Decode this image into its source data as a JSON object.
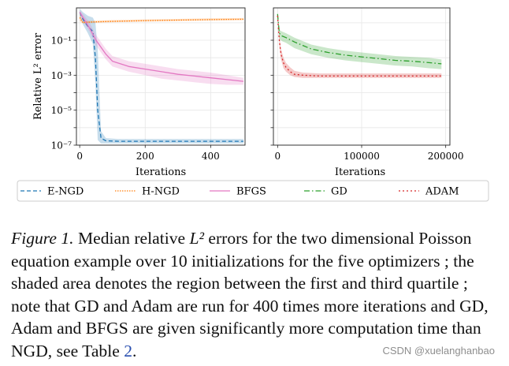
{
  "chart_data": [
    {
      "type": "line",
      "panel": "left",
      "xlabel": "Iterations",
      "ylabel": "Relative L² error",
      "yscale": "log",
      "xlim": [
        -10,
        505
      ],
      "ylim_log10": [
        -7,
        0.85
      ],
      "xticks": [
        0,
        200,
        400
      ],
      "xtick_labels": [
        "0",
        "200",
        "400"
      ],
      "yticks_log10": [
        -7,
        -5,
        -3,
        -1
      ],
      "ytick_labels": [
        "10⁻⁷",
        "10⁻⁵",
        "10⁻³",
        "10⁻¹"
      ],
      "series": [
        {
          "name": "E-NGD",
          "color": "#1f77b4",
          "dash": "5,3",
          "x": [
            0,
            10,
            25,
            40,
            48,
            55,
            65,
            80,
            120,
            200,
            300,
            400,
            500
          ],
          "y_log10": [
            0.6,
            0.2,
            -0.2,
            -0.5,
            -2.0,
            -5.0,
            -6.6,
            -6.75,
            -6.78,
            -6.78,
            -6.78,
            -6.78,
            -6.78
          ],
          "band_lower_log10": [
            0.4,
            -0.1,
            -0.6,
            -1.2,
            -3.5,
            -6.7,
            -6.9,
            -6.9,
            -6.9,
            -6.9,
            -6.9,
            -6.9,
            -6.9
          ],
          "band_upper_log10": [
            0.8,
            0.6,
            0.4,
            0.3,
            0.0,
            -1.5,
            -6.2,
            -6.6,
            -6.65,
            -6.65,
            -6.65,
            -6.65,
            -6.65
          ]
        },
        {
          "name": "H-NGD",
          "color": "#ff7f0e",
          "dash": "1.5,1.5",
          "x": [
            0,
            10,
            20,
            50,
            100,
            200,
            300,
            400,
            500
          ],
          "y_log10": [
            0.3,
            0.0,
            0.03,
            0.05,
            0.08,
            0.12,
            0.15,
            0.18,
            0.2
          ],
          "band_lower_log10": [
            0.1,
            -0.05,
            -0.03,
            0.0,
            0.03,
            0.07,
            0.1,
            0.13,
            0.15
          ],
          "band_upper_log10": [
            0.5,
            0.08,
            0.1,
            0.12,
            0.15,
            0.19,
            0.22,
            0.25,
            0.27
          ]
        },
        {
          "name": "BFGS",
          "color": "#e377c2",
          "dash": "",
          "x": [
            0,
            10,
            30,
            50,
            80,
            100,
            150,
            200,
            250,
            300,
            350,
            400,
            450,
            500
          ],
          "y_log10": [
            0.6,
            0.3,
            -0.3,
            -1.0,
            -1.8,
            -2.2,
            -2.5,
            -2.65,
            -2.8,
            -2.95,
            -3.05,
            -3.15,
            -3.25,
            -3.35
          ],
          "band_lower_log10": [
            0.5,
            0.1,
            -0.5,
            -1.3,
            -2.1,
            -2.5,
            -2.8,
            -3.0,
            -3.2,
            -3.3,
            -3.4,
            -3.5,
            -3.55,
            -3.55
          ],
          "band_upper_log10": [
            0.7,
            0.5,
            0.0,
            -0.7,
            -1.5,
            -1.9,
            -2.2,
            -2.35,
            -2.5,
            -2.65,
            -2.75,
            -2.85,
            -3.0,
            -3.15
          ]
        }
      ]
    },
    {
      "type": "line",
      "panel": "right",
      "xlabel": "Iterations",
      "yscale": "log",
      "xlim": [
        -5000,
        205000
      ],
      "ylim_log10": [
        -7,
        0.85
      ],
      "xticks": [
        0,
        100000,
        200000
      ],
      "xtick_labels": [
        "0",
        "100000",
        "200000"
      ],
      "series": [
        {
          "name": "GD",
          "color": "#2ca02c",
          "dash": "7,3,1.5,3",
          "x": [
            0,
            2000,
            5000,
            10000,
            20000,
            40000,
            60000,
            80000,
            100000,
            120000,
            140000,
            160000,
            180000,
            195000
          ],
          "y_log10": [
            0.5,
            -0.6,
            -0.75,
            -0.85,
            -1.1,
            -1.5,
            -1.7,
            -1.85,
            -1.95,
            -2.05,
            -2.15,
            -2.2,
            -2.28,
            -2.35
          ],
          "band_lower_log10": [
            0.4,
            -0.9,
            -1.05,
            -1.15,
            -1.45,
            -1.8,
            -2.0,
            -2.15,
            -2.25,
            -2.35,
            -2.45,
            -2.5,
            -2.6,
            -2.65
          ],
          "band_upper_log10": [
            0.6,
            -0.4,
            -0.5,
            -0.6,
            -0.85,
            -1.25,
            -1.45,
            -1.6,
            -1.7,
            -1.8,
            -1.9,
            -1.95,
            -2.0,
            -2.1
          ]
        },
        {
          "name": "ADAM",
          "color": "#d62728",
          "dash": "2,3",
          "x": [
            0,
            2000,
            4000,
            7000,
            10000,
            15000,
            20000,
            30000,
            50000,
            100000,
            150000,
            195000
          ],
          "y_log10": [
            0.4,
            -1.0,
            -1.8,
            -2.3,
            -2.55,
            -2.8,
            -2.95,
            -3.0,
            -3.05,
            -3.05,
            -3.05,
            -3.05
          ],
          "band_lower_log10": [
            0.3,
            -1.3,
            -2.1,
            -2.6,
            -2.8,
            -3.0,
            -3.1,
            -3.15,
            -3.15,
            -3.15,
            -3.15,
            -3.15
          ],
          "band_upper_log10": [
            0.5,
            -0.7,
            -1.5,
            -2.0,
            -2.3,
            -2.55,
            -2.75,
            -2.85,
            -2.9,
            -2.9,
            -2.9,
            -2.9
          ]
        }
      ]
    }
  ],
  "legend": {
    "items": [
      {
        "label": "E-NGD",
        "color": "#1f77b4",
        "dash": "5,3"
      },
      {
        "label": "H-NGD",
        "color": "#ff7f0e",
        "dash": "1.5,1.5"
      },
      {
        "label": "BFGS",
        "color": "#e377c2",
        "dash": ""
      },
      {
        "label": "GD",
        "color": "#2ca02c",
        "dash": "7,3,1.5,3"
      },
      {
        "label": "ADAM",
        "color": "#d62728",
        "dash": "2,3"
      }
    ]
  },
  "caption": {
    "lead": "Figure 1.",
    "text_1": " Median relative ",
    "math": "L²",
    "text_2": " errors for the two dimensional Poisson equation example over 10 initializations for the five optimizers ; the shaded area denotes the region between the first and third quartile ; note that GD and Adam are run for 400 times more iterations and GD, Adam and BFGS are given significantly more computation time than NGD, see Table ",
    "table_ref": "2",
    "text_3": "."
  },
  "watermark": "CSDN @xuelanghanbao"
}
